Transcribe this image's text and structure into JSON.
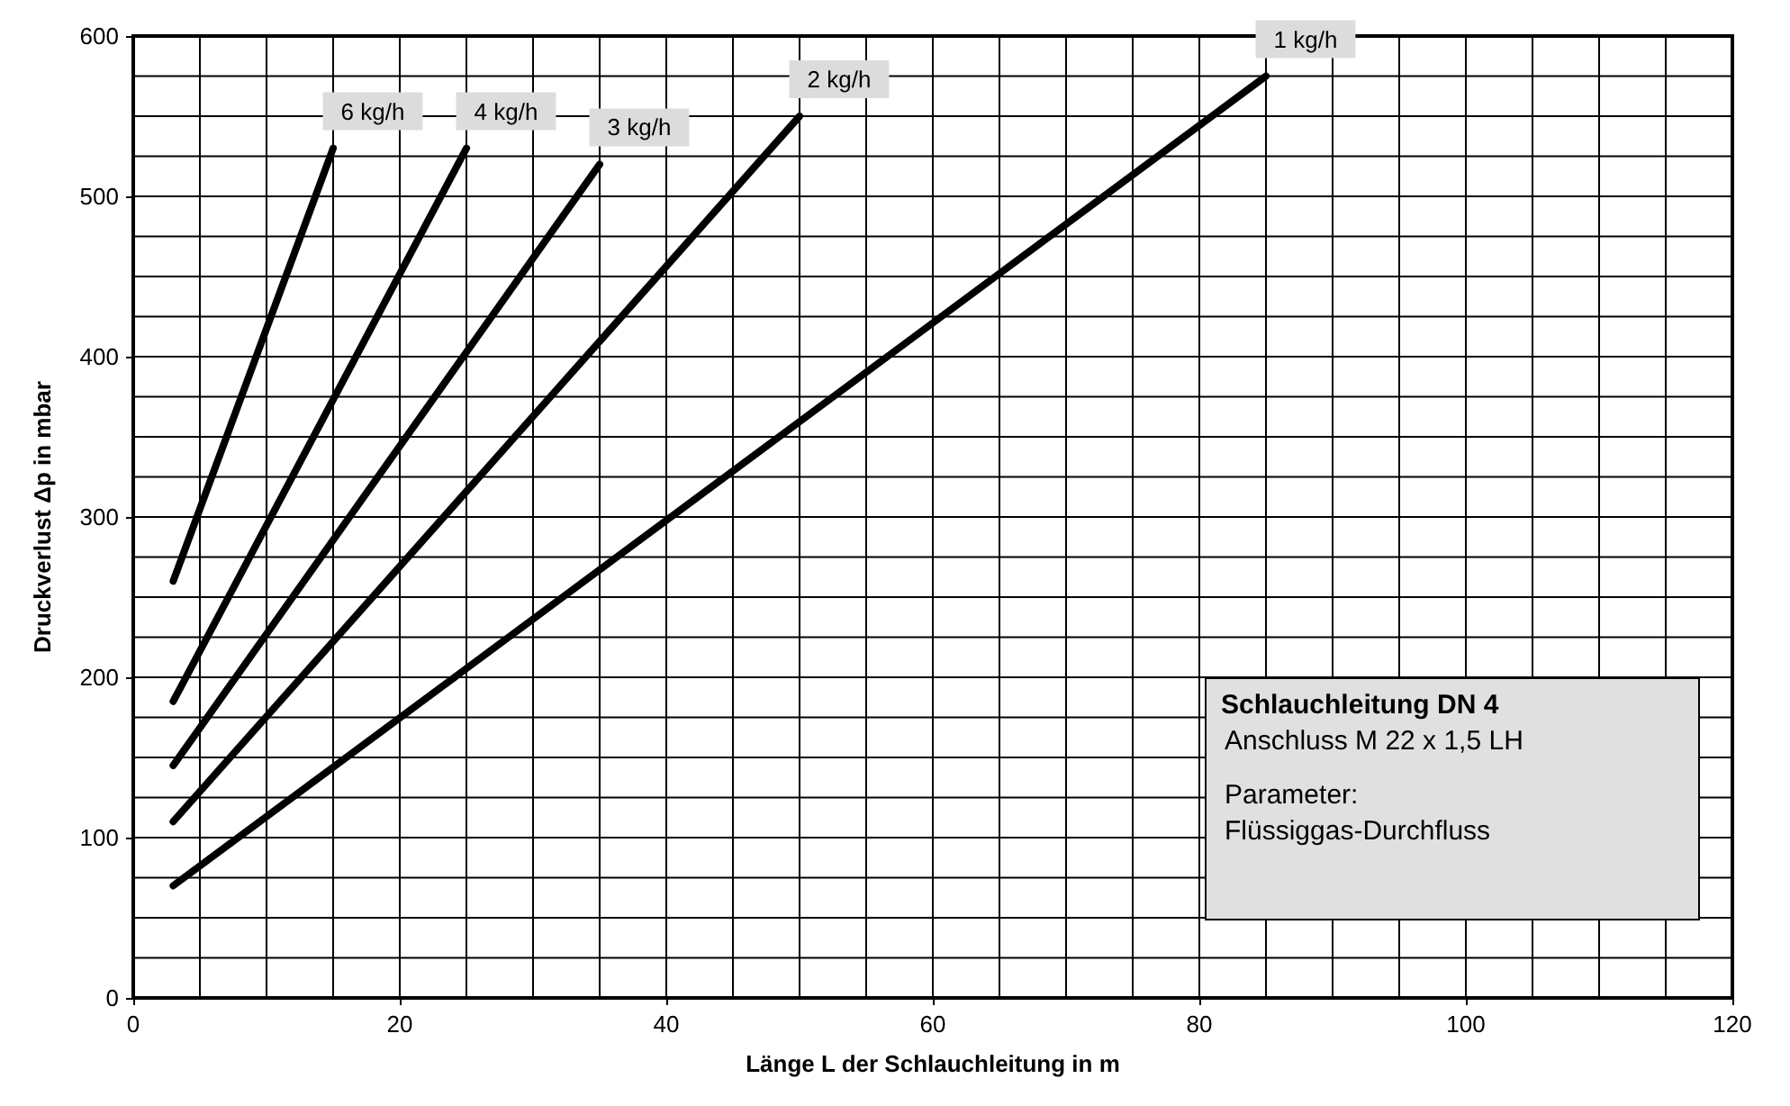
{
  "chart_data": {
    "type": "line",
    "xlabel": "Länge L der Schlauchleitung in m",
    "ylabel": "Druckverlust Δp in mbar",
    "series": [
      {
        "name": "1 kg/h",
        "color": "#000000",
        "x": [
          3,
          85
        ],
        "values": [
          70,
          575
        ]
      },
      {
        "name": "2 kg/h",
        "color": "#000000",
        "x": [
          3,
          50
        ],
        "values": [
          110,
          550
        ]
      },
      {
        "name": "3 kg/h",
        "color": "#000000",
        "x": [
          3,
          35
        ],
        "values": [
          145,
          520
        ]
      },
      {
        "name": "4 kg/h",
        "color": "#000000",
        "x": [
          3,
          25
        ],
        "values": [
          185,
          530
        ]
      },
      {
        "name": "6 kg/h",
        "color": "#000000",
        "x": [
          3,
          15
        ],
        "values": [
          260,
          530
        ]
      }
    ],
    "xlim": [
      0,
      120
    ],
    "xticks": [
      0,
      {
        "value": 5,
        "label": null
      },
      {
        "value": 10,
        "label": null
      },
      {
        "value": 15,
        "label": null
      },
      20,
      {
        "value": 25,
        "label": null
      },
      {
        "value": 30,
        "label": null
      },
      {
        "value": 35,
        "label": null
      },
      40,
      {
        "value": 45,
        "label": null
      },
      {
        "value": 50,
        "label": null
      },
      {
        "value": 55,
        "label": null
      },
      60,
      {
        "value": 65,
        "label": null
      },
      {
        "value": 70,
        "label": null
      },
      {
        "value": 75,
        "label": null
      },
      80,
      {
        "value": 85,
        "label": null
      },
      {
        "value": 90,
        "label": null
      },
      {
        "value": 95,
        "label": null
      },
      100,
      {
        "value": 105,
        "label": null
      },
      {
        "value": 110,
        "label": null
      },
      {
        "value": 115,
        "label": null
      },
      120
    ],
    "ylim": [
      0,
      600
    ],
    "yticks": [
      0,
      {
        "value": 25,
        "label": null
      },
      {
        "value": 50,
        "label": null
      },
      {
        "value": 75,
        "label": null
      },
      100,
      {
        "value": 125,
        "label": null
      },
      {
        "value": 150,
        "label": null
      },
      {
        "value": 175,
        "label": null
      },
      200,
      {
        "value": 225,
        "label": null
      },
      {
        "value": 250,
        "label": null
      },
      {
        "value": 275,
        "label": null
      },
      300,
      {
        "value": 325,
        "label": null
      },
      {
        "value": 350,
        "label": null
      },
      {
        "value": 375,
        "label": null
      },
      400,
      {
        "value": 425,
        "label": null
      },
      {
        "value": 450,
        "label": null
      },
      {
        "value": 475,
        "label": null
      },
      500,
      {
        "value": 525,
        "label": null
      },
      {
        "value": 550,
        "label": null
      },
      {
        "value": 575,
        "label": null
      },
      600
    ],
    "grid": true,
    "legend": false,
    "marker": "none",
    "line_style": "solid",
    "annotations": [
      "Schlauchleitung DN 4",
      "Anschluss M 22 x 1,5 LH",
      "Parameter:",
      "Flüssiggas-Durchfluss"
    ]
  }
}
